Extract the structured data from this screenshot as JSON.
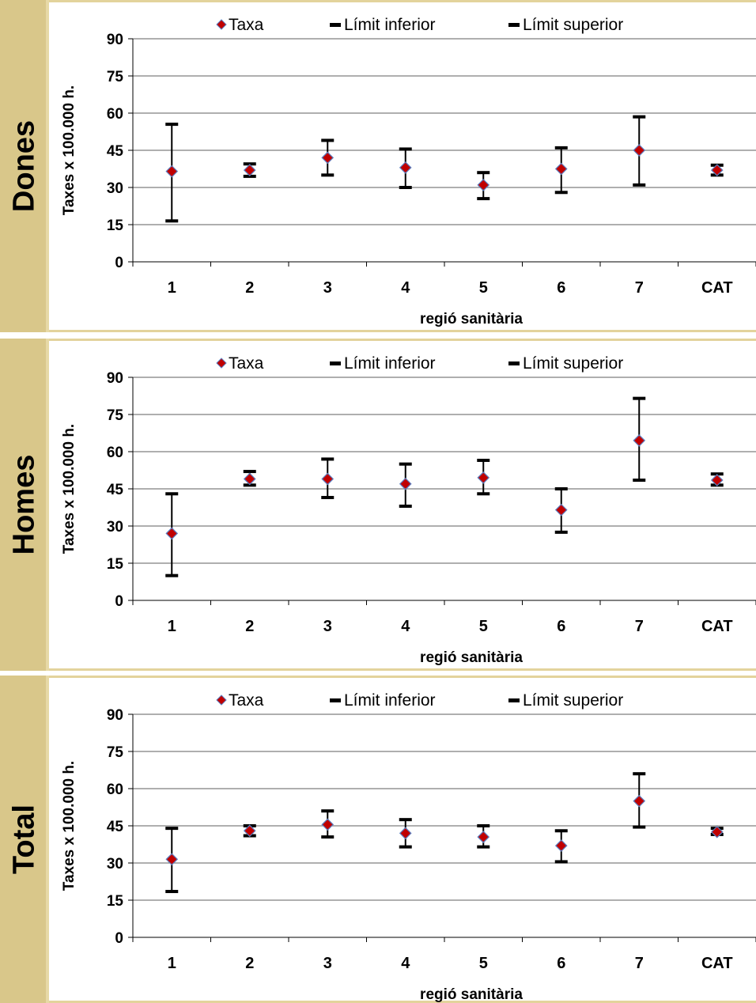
{
  "chart_data": [
    {
      "type": "scatter",
      "panel_label": "Dones",
      "xlabel": "regió sanitària",
      "ylabel": "Taxes x 100.000 h.",
      "ylim": [
        0,
        90
      ],
      "yticks": [
        "0",
        "15",
        "30",
        "45",
        "60",
        "75",
        "90"
      ],
      "categories": [
        "1",
        "2",
        "3",
        "4",
        "5",
        "6",
        "7",
        "CAT"
      ],
      "legend": {
        "placement": "top",
        "entries": [
          "Taxa",
          "Límit inferior",
          "Límit superior"
        ]
      },
      "grid": true,
      "series": [
        {
          "name": "Taxa",
          "values": [
            36.5,
            37.0,
            42.0,
            38.0,
            31.0,
            37.5,
            45.0,
            37.0
          ]
        },
        {
          "name": "Límit inferior",
          "values": [
            16.5,
            34.5,
            35.0,
            30.0,
            25.5,
            28.0,
            31.0,
            35.0
          ]
        },
        {
          "name": "Límit superior",
          "values": [
            55.5,
            39.5,
            49.0,
            45.5,
            36.0,
            46.0,
            58.5,
            39.0
          ]
        }
      ]
    },
    {
      "type": "scatter",
      "panel_label": "Homes",
      "xlabel": "regió sanitària",
      "ylabel": "Taxes x 100.000 h.",
      "ylim": [
        0,
        90
      ],
      "yticks": [
        "0",
        "15",
        "30",
        "45",
        "60",
        "75",
        "90"
      ],
      "categories": [
        "1",
        "2",
        "3",
        "4",
        "5",
        "6",
        "7",
        "CAT"
      ],
      "legend": {
        "placement": "top",
        "entries": [
          "Taxa",
          "Límit inferior",
          "Límit superior"
        ]
      },
      "grid": true,
      "series": [
        {
          "name": "Taxa",
          "values": [
            27.0,
            49.0,
            49.0,
            47.0,
            49.5,
            36.5,
            64.5,
            48.5
          ]
        },
        {
          "name": "Límit inferior",
          "values": [
            10.0,
            46.5,
            41.5,
            38.0,
            43.0,
            27.5,
            48.5,
            46.5
          ]
        },
        {
          "name": "Límit superior",
          "values": [
            43.0,
            52.0,
            57.0,
            55.0,
            56.5,
            45.0,
            81.5,
            51.0
          ]
        }
      ]
    },
    {
      "type": "scatter",
      "panel_label": "Total",
      "xlabel": "regió sanitària",
      "ylabel": "Taxes x 100.000 h.",
      "ylim": [
        0,
        90
      ],
      "yticks": [
        "0",
        "15",
        "30",
        "45",
        "60",
        "75",
        "90"
      ],
      "categories": [
        "1",
        "2",
        "3",
        "4",
        "5",
        "6",
        "7",
        "CAT"
      ],
      "legend": {
        "placement": "top",
        "entries": [
          "Taxa",
          "Límit inferior",
          "Límit superior"
        ]
      },
      "grid": true,
      "series": [
        {
          "name": "Taxa",
          "values": [
            31.5,
            43.0,
            45.5,
            42.0,
            40.5,
            37.0,
            55.0,
            42.5
          ]
        },
        {
          "name": "Límit inferior",
          "values": [
            18.5,
            41.0,
            40.5,
            36.5,
            36.5,
            30.5,
            44.5,
            41.5
          ]
        },
        {
          "name": "Límit superior",
          "values": [
            44.0,
            45.0,
            51.0,
            47.5,
            45.0,
            43.0,
            66.0,
            44.0
          ]
        }
      ]
    }
  ],
  "colors": {
    "marker_fill": "#c00000",
    "marker_stroke": "#5b7dbf",
    "errbar": "#000000",
    "grid": "#7f7f7f",
    "side_band": "#d9c78a"
  }
}
